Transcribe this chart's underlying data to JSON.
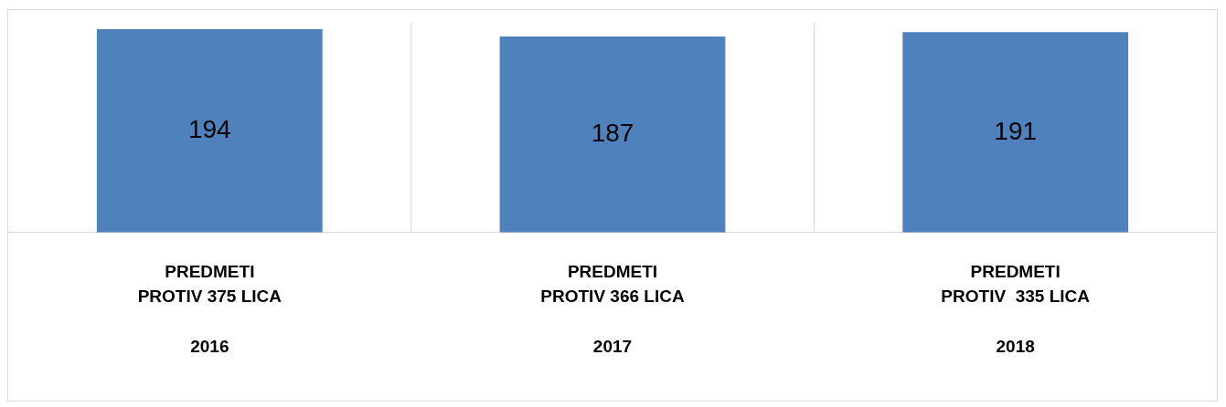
{
  "chart_data": {
    "type": "bar",
    "categories": [
      "PREDMETI\nPROTIV 375 LICA\n\n2016",
      "PREDMETI\nPROTIV 366 LICA\n\n2017",
      "PREDMETI\nPROTIV  335 LICA\n\n2018"
    ],
    "values": [
      194,
      187,
      191
    ],
    "color": "#4f81bd",
    "data_labels": true,
    "grid": "x",
    "legend": false,
    "tick_labels": "x"
  }
}
